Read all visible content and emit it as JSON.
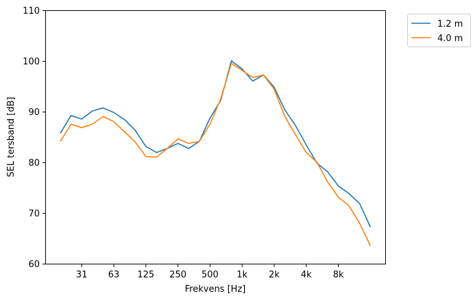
{
  "chart_data": {
    "type": "line",
    "title": "",
    "xlabel": "Frekvens [Hz]",
    "ylabel": "SEL tersband [dB]",
    "ylim": [
      60,
      110
    ],
    "yticks": [
      60,
      70,
      80,
      90,
      100,
      110
    ],
    "x": [
      "20",
      "25",
      "31.5",
      "40",
      "50",
      "63",
      "80",
      "100",
      "125",
      "160",
      "200",
      "250",
      "315",
      "400",
      "500",
      "630",
      "800",
      "1000",
      "1250",
      "1600",
      "2000",
      "2500",
      "3150",
      "4000",
      "5000",
      "6300",
      "8000",
      "10000",
      "12500",
      "16000"
    ],
    "xticks": [
      {
        "index": 2,
        "label": "31"
      },
      {
        "index": 5,
        "label": "63"
      },
      {
        "index": 8,
        "label": "125"
      },
      {
        "index": 11,
        "label": "250"
      },
      {
        "index": 14,
        "label": "500"
      },
      {
        "index": 17,
        "label": "1k"
      },
      {
        "index": 20,
        "label": "2k"
      },
      {
        "index": 23,
        "label": "4k"
      },
      {
        "index": 26,
        "label": "8k"
      }
    ],
    "legend_position": "outside-top-right",
    "grid": false,
    "series": [
      {
        "name": "1.2 m",
        "color": "#1f77b4",
        "values": [
          85.8,
          89.3,
          88.6,
          90.2,
          90.8,
          89.9,
          88.5,
          86.4,
          83.2,
          82.0,
          82.8,
          83.8,
          82.8,
          84.2,
          88.8,
          92.3,
          100.1,
          98.5,
          96.1,
          97.3,
          94.9,
          90.4,
          87.3,
          83.5,
          79.9,
          78.2,
          75.4,
          73.9,
          71.9,
          67.3
        ]
      },
      {
        "name": "4.0 m",
        "color": "#ff7f0e",
        "values": [
          84.2,
          87.6,
          86.9,
          87.6,
          89.1,
          88.1,
          86.1,
          84.1,
          81.2,
          81.1,
          82.8,
          84.7,
          83.8,
          84.2,
          87.6,
          92.6,
          99.6,
          98.2,
          96.8,
          97.3,
          94.5,
          89.1,
          85.5,
          82.0,
          80.1,
          76.2,
          73.2,
          71.5,
          68.0,
          63.6
        ]
      }
    ]
  }
}
